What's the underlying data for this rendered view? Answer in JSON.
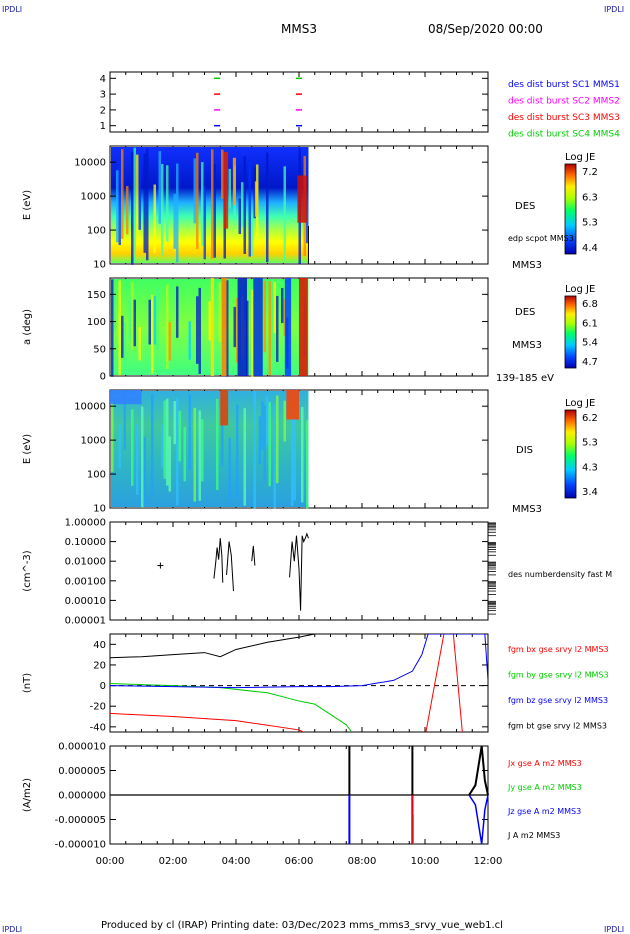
{
  "page": {
    "corner_tl": "IPDLI",
    "corner_tr": "IPDLI",
    "corner_bl": "IPDLI",
    "corner_br": "IPDLI",
    "spacecraft": "MMS3",
    "datetime": "08/Sep/2020 00:00",
    "footer": "Produced by cl (IRAP)   Printing date: 03/Dec/2023   mms_mms3_srvy_vue_web1.cl"
  },
  "colors": {
    "blue": "#0000ff",
    "magenta": "#ff00ff",
    "red": "#ff0000",
    "green": "#00cc00",
    "black": "#000000"
  },
  "chart_data": [
    {
      "type": "scatter",
      "panel": "burst",
      "x_ticks": [
        "00:00",
        "02:00",
        "04:00",
        "06:00",
        "08:00",
        "10:00",
        "12:00"
      ],
      "yticks": [
        "1",
        "2",
        "3",
        "4"
      ],
      "ylim": [
        0.6,
        4.4
      ],
      "series": [
        {
          "name": "des dist burst SC1 MMS1",
          "y": 1,
          "x_hours": [
            3.4,
            6.0
          ]
        },
        {
          "name": "des dist burst SC2 MMS2",
          "y": 2,
          "x_hours": [
            3.4,
            6.0
          ]
        },
        {
          "name": "des dist burst SC3 MMS3",
          "y": 3,
          "x_hours": [
            3.4,
            6.0
          ]
        },
        {
          "name": "des dist burst SC4 MMS4",
          "y": 4,
          "x_hours": [
            3.4,
            6.0
          ]
        }
      ]
    },
    {
      "type": "heatmap",
      "panel": "des-energy",
      "ylabel": "E (eV)",
      "yscale": "log",
      "ylim": [
        10,
        30000
      ],
      "yticks": [
        "10",
        "100",
        "1000",
        "10000"
      ],
      "right_label": "DES",
      "right_sub": "MMS3",
      "overlay_label": "edp scpot MMS3",
      "colorbar": {
        "title": "Log JE",
        "ticks": [
          "7.2",
          "6.3",
          "5.3",
          "4.4"
        ],
        "min": 4.4,
        "max": 7.2
      },
      "data_end_hour": 6.3
    },
    {
      "type": "heatmap",
      "panel": "des-pitch",
      "ylabel": "a (deg)",
      "ylim": [
        0,
        180
      ],
      "yticks": [
        "0",
        "50",
        "100",
        "150"
      ],
      "right_label": "DES",
      "right_sub": "MMS3",
      "bottom_note": "139-185 eV",
      "colorbar": {
        "title": "Log JE",
        "ticks": [
          "6.8",
          "6.1",
          "5.4",
          "4.7"
        ],
        "min": 4.7,
        "max": 6.8
      },
      "data_end_hour": 6.3
    },
    {
      "type": "heatmap",
      "panel": "dis-energy",
      "ylabel": "E (eV)",
      "yscale": "log",
      "ylim": [
        10,
        30000
      ],
      "yticks": [
        "10",
        "100",
        "1000",
        "10000"
      ],
      "right_label": "DIS",
      "right_sub": "MMS3",
      "colorbar": {
        "title": "Log JE",
        "ticks": [
          "6.2",
          "5.3",
          "4.3",
          "3.4"
        ],
        "min": 3.4,
        "max": 6.2
      },
      "data_end_hour": 6.3
    },
    {
      "type": "line",
      "panel": "density",
      "ylabel": "(cm^-3)",
      "yscale": "log",
      "ylim": [
        1e-05,
        1
      ],
      "yticks": [
        "1.00000",
        "0.10000",
        "0.01000",
        "0.00100",
        "0.00010",
        "0.00001"
      ],
      "series_name": "des numberdensity fast M",
      "marker": {
        "x": 1.6,
        "y": 0.006
      },
      "segments": [
        {
          "x": [
            3.3,
            3.36,
            3.4,
            3.45,
            3.5,
            3.55,
            3.58
          ],
          "y": [
            0.0013,
            0.01,
            0.05,
            0.012,
            0.15,
            0.02,
            0.0008
          ]
        },
        {
          "x": [
            3.7,
            3.78,
            3.85,
            3.92
          ],
          "y": [
            0.002,
            0.1,
            0.02,
            0.0003
          ]
        },
        {
          "x": [
            4.5,
            4.55,
            4.6
          ],
          "y": [
            0.01,
            0.06,
            0.006
          ]
        },
        {
          "x": [
            5.7,
            5.78,
            5.85,
            5.92,
            6.0,
            6.05,
            6.1,
            6.15,
            6.2,
            6.25,
            6.3
          ],
          "y": [
            0.0015,
            0.1,
            0.01,
            0.2,
            0.004,
            3e-05,
            0.2,
            0.1,
            0.15,
            0.25,
            0.15
          ]
        }
      ]
    },
    {
      "type": "line",
      "panel": "magnetic-field",
      "ylabel": "(nT)",
      "ylim": [
        -45,
        50
      ],
      "yticks": [
        "40",
        "20",
        "0",
        "-20",
        "-40"
      ],
      "series": [
        {
          "name": "fgm bx gse srvy l2 MMS3",
          "color": "#ff0000",
          "x": [
            0,
            2,
            3.5,
            4,
            6,
            6.5,
            9.6,
            10.0,
            10.6,
            10.9,
            11.2
          ],
          "y": [
            -27,
            -30,
            -33,
            -34,
            -43,
            -50,
            -50,
            -50,
            50,
            50,
            -50
          ]
        },
        {
          "name": "fgm by gse srvy l2 MMS3",
          "color": "#00cc00",
          "x": [
            0,
            2,
            3.5,
            5,
            6,
            6.5,
            7,
            7.5,
            7.8
          ],
          "y": [
            2,
            0,
            -2,
            -7,
            -15,
            -18,
            -28,
            -38,
            -50
          ]
        },
        {
          "name": "fgm bz gse srvy l2 MMS3",
          "color": "#0000ff",
          "x": [
            0,
            2,
            4,
            6,
            7,
            8,
            9,
            9.6,
            9.9,
            10.1,
            11.9,
            12.0
          ],
          "y": [
            0,
            -1,
            -2,
            -1,
            -1,
            0,
            5,
            14,
            30,
            50,
            50,
            5
          ]
        },
        {
          "name": "fgm bt gse srvy l2 MMS3",
          "color": "#000000",
          "x": [
            0,
            1,
            2,
            3,
            3.5,
            4,
            5,
            6,
            6.5
          ],
          "y": [
            27,
            28,
            30,
            32,
            28,
            35,
            42,
            47,
            50
          ]
        }
      ]
    },
    {
      "type": "line",
      "panel": "current",
      "ylabel": "(A/m2)",
      "ylim": [
        -1e-05,
        1e-05
      ],
      "yticks": [
        "0.000010",
        "0.000005",
        "0.000000",
        "-0.000005",
        "-0.000010"
      ],
      "series_names": [
        "Jx gse A m2 MMS3",
        "Jy gse A m2 MMS3",
        "Jz gse A m2 MMS3",
        "J A m2 MMS3"
      ],
      "series_colors": [
        "#ff0000",
        "#00cc00",
        "#0000ff",
        "#000000"
      ],
      "spikes_hours": [
        7.6,
        9.6,
        11.8
      ],
      "x_ticks": [
        "00:00",
        "02:00",
        "04:00",
        "06:00",
        "08:00",
        "10:00",
        "12:00"
      ]
    }
  ]
}
